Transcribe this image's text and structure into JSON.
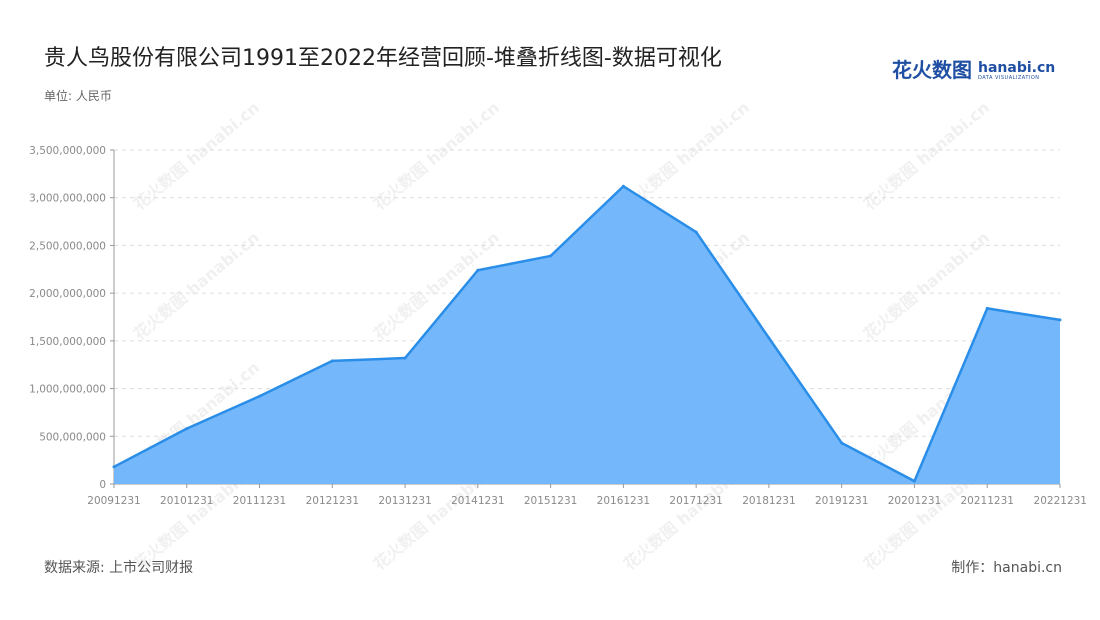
{
  "page": {
    "title": "贵人鸟股份有限公司1991至2022年经营回顾-堆叠折线图-数据可视化",
    "unit": "单位: 人民币",
    "source": "数据来源: 上市公司财报",
    "credit": "制作：hanabi.cn"
  },
  "logo": {
    "cn": "花火数图",
    "en": "hanabi.cn",
    "sub": "DATA VISUALIZATION",
    "watermark": "花火数图 hanabi.cn"
  },
  "colors": {
    "line": "#2a8ee8",
    "area": "#74b8fb",
    "grid": "#dcdcdc",
    "axis": "#999999"
  },
  "chart_data": {
    "type": "area",
    "categories": [
      "20091231",
      "20101231",
      "20111231",
      "20121231",
      "20131231",
      "20141231",
      "20151231",
      "20161231",
      "20171231",
      "20181231",
      "20191231",
      "20201231",
      "20211231",
      "20221231"
    ],
    "series": [
      {
        "values": [
          180000000,
          580000000,
          920000000,
          1290000000,
          1320000000,
          2240000000,
          2390000000,
          3120000000,
          2640000000,
          1530000000,
          430000000,
          30000000,
          1840000000,
          1720000000
        ]
      }
    ],
    "ylim": [
      0,
      3500000000
    ],
    "yticks": [
      0,
      500000000,
      1000000000,
      1500000000,
      2000000000,
      2500000000,
      3000000000,
      3500000000
    ],
    "ytick_labels": [
      "0",
      "500,000,000",
      "1,000,000,000",
      "1,500,000,000",
      "2,000,000,000",
      "2,500,000,000",
      "3,000,000,000",
      "3,500,000,000"
    ],
    "grid": true,
    "legend": "none"
  }
}
